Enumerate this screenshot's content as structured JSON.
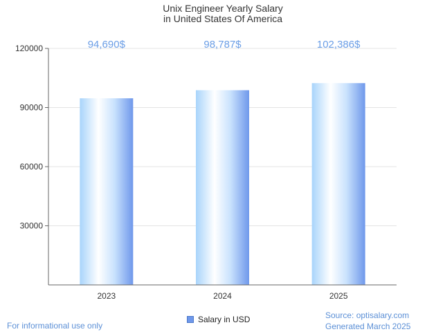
{
  "chart_data": {
    "type": "bar",
    "title": [
      "Unix Engineer Yearly Salary",
      "in United States Of America"
    ],
    "categories": [
      "2023",
      "2024",
      "2025"
    ],
    "series": [
      {
        "name": "Salary in USD",
        "values": [
          94690,
          98787,
          102386
        ]
      }
    ],
    "data_labels": [
      "94,690$",
      "98,787$",
      "102,386$"
    ],
    "yticks": [
      30000,
      60000,
      90000,
      120000
    ],
    "ylim": [
      0,
      120000
    ],
    "grid": true,
    "legend_position": "bottom-center",
    "colors": {
      "bar_light": "#ffffff",
      "bar_mid": "#a8d4fb",
      "bar_dark": "#6f98eb",
      "label": "#6b9ee6"
    }
  },
  "footer": {
    "left": "For informational use only",
    "source": "Source: optisalary.com",
    "generated": "Generated March 2025"
  }
}
